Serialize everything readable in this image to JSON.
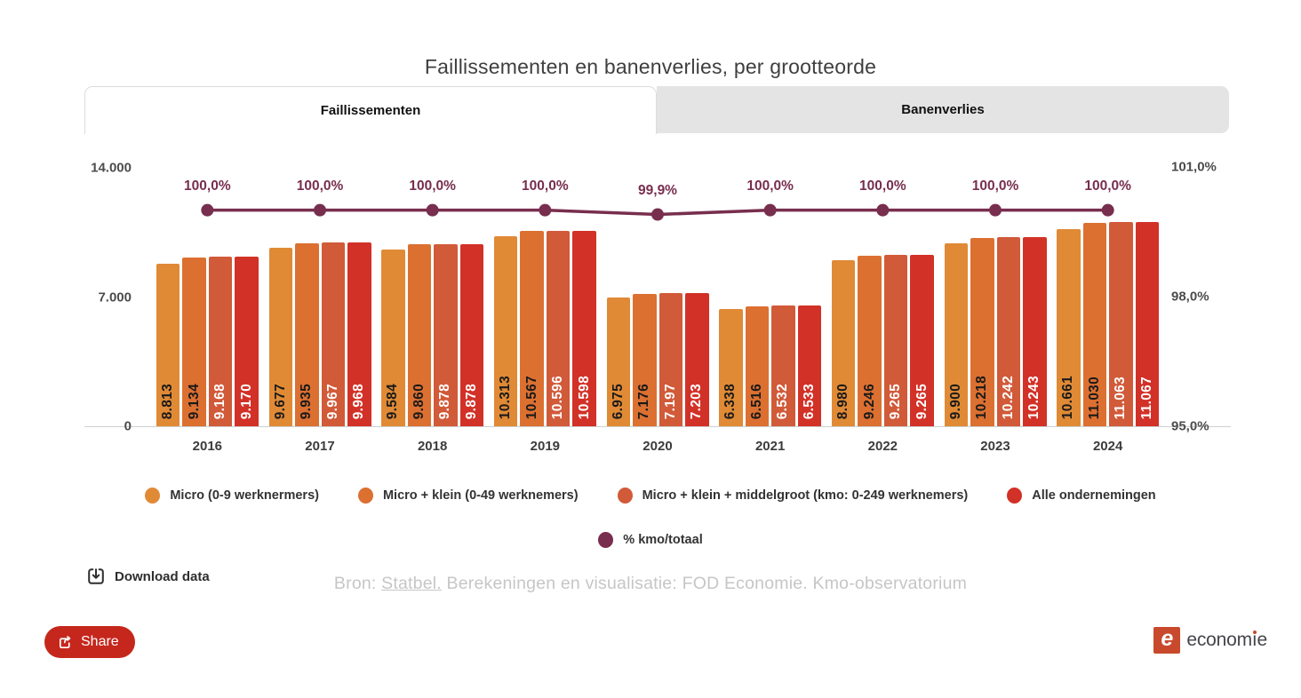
{
  "title": "Faillissementen en banenverlies, per grootteorde",
  "tabs": [
    {
      "label": "Faillissementen",
      "active": true
    },
    {
      "label": "Banenverlies",
      "active": false
    }
  ],
  "chart_data": {
    "type": "bar",
    "title": "Faillissementen en banenverlies, per grootteorde",
    "categories": [
      "2016",
      "2017",
      "2018",
      "2019",
      "2020",
      "2021",
      "2022",
      "2023",
      "2024"
    ],
    "series": [
      {
        "name": "Micro (0-9 werknermers)",
        "color": "#e08a36",
        "label_color": "#1a1a1a",
        "values": [
          8813,
          9677,
          9584,
          10313,
          6975,
          6338,
          8980,
          9900,
          10661
        ],
        "labels": [
          "8.813",
          "9.677",
          "9.584",
          "10.313",
          "6.975",
          "6.338",
          "8.980",
          "9.900",
          "10.661"
        ]
      },
      {
        "name": "Micro + klein (0-49 werknemers)",
        "color": "#dc7031",
        "label_color": "#1a1a1a",
        "values": [
          9134,
          9935,
          9860,
          10567,
          7176,
          6516,
          9246,
          10218,
          11030
        ],
        "labels": [
          "9.134",
          "9.935",
          "9.860",
          "10.567",
          "7.176",
          "6.516",
          "9.246",
          "10.218",
          "11.030"
        ]
      },
      {
        "name": "Micro + klein + middelgroot (kmo: 0-249 werknemers)",
        "color": "#d15a39",
        "label_color": "#ffffff",
        "values": [
          9168,
          9967,
          9878,
          10596,
          7197,
          6532,
          9265,
          10242,
          11063
        ],
        "labels": [
          "9.168",
          "9.967",
          "9.878",
          "10.596",
          "7.197",
          "6.532",
          "9.265",
          "10.242",
          "11.063"
        ]
      },
      {
        "name": "Alle ondernemingen",
        "color": "#d23127",
        "label_color": "#ffffff",
        "values": [
          9170,
          9968,
          9878,
          10598,
          7203,
          6533,
          9265,
          10243,
          11067
        ],
        "labels": [
          "9.170",
          "9.968",
          "9.878",
          "10.598",
          "7.203",
          "6.533",
          "9.265",
          "10.243",
          "11.067"
        ]
      }
    ],
    "line_series": {
      "name": "% kmo/totaal",
      "color": "#782e4e",
      "values": [
        100.0,
        100.0,
        100.0,
        100.0,
        99.9,
        100.0,
        100.0,
        100.0,
        100.0
      ],
      "labels": [
        "100,0%",
        "100,0%",
        "100,0%",
        "100,0%",
        "99,9%",
        "100,0%",
        "100,0%",
        "100,0%",
        "100,0%"
      ]
    },
    "left_axis": {
      "max": 14000,
      "ticks": [
        {
          "label": "14.000",
          "value": 14000
        },
        {
          "label": "7.000",
          "value": 7000
        },
        {
          "label": "0",
          "value": 0
        }
      ]
    },
    "right_axis": {
      "min": 95,
      "max": 101,
      "ticks": [
        {
          "label": "101,0%",
          "value": 101
        },
        {
          "label": "98,0%",
          "value": 98
        },
        {
          "label": "95,0%",
          "value": 95
        }
      ]
    },
    "legend_position": "bottom",
    "grid": false
  },
  "legend2": {
    "label": "% kmo/totaal",
    "color": "#782e4e"
  },
  "download": {
    "label": "Download data"
  },
  "source": {
    "prefix": "Bron: ",
    "link": "Statbel.",
    "rest": " Berekeningen en visualisatie: FOD Economie. Kmo-observatorium"
  },
  "share": {
    "label": "Share"
  },
  "logo": {
    "mark": "e",
    "name_pre": "econom",
    "name_i": "ı",
    "name_post": "e"
  }
}
